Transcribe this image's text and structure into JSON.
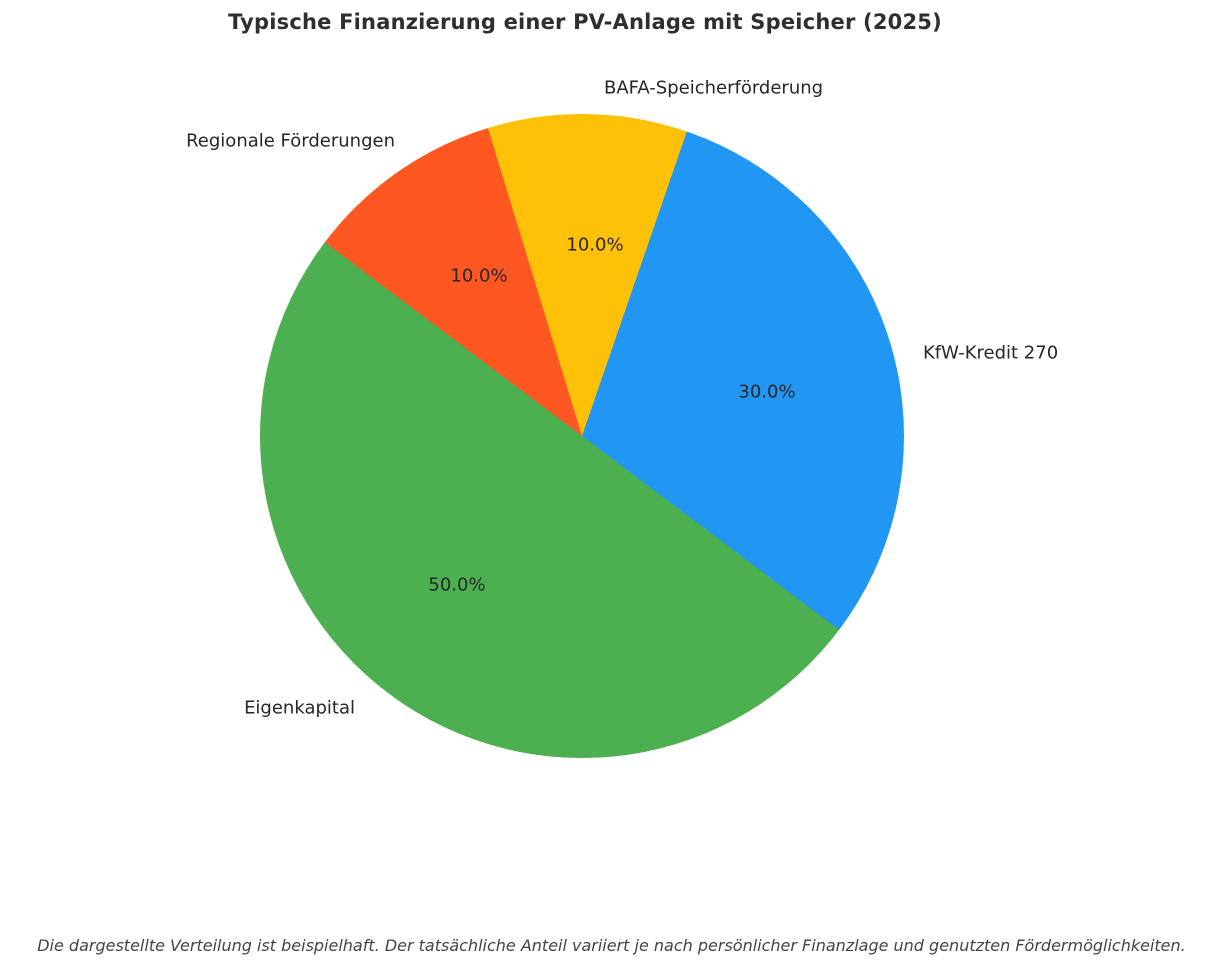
{
  "chart_data": {
    "type": "pie",
    "title": "Typische Finanzierung einer PV-Anlage mit Speicher (2025)",
    "start_angle_deg": -37,
    "direction": "counterclockwise",
    "legend_position": "none",
    "labels_position": "outside",
    "pct_labels_position": "inside",
    "slices": [
      {
        "label": "KfW-Kredit 270",
        "value": 30.0,
        "pct_label": "30.0%",
        "color": "#2196F3"
      },
      {
        "label": "BAFA-Speicherförderung",
        "value": 10.0,
        "pct_label": "10.0%",
        "color": "#FFC107"
      },
      {
        "label": "Regionale Förderungen",
        "value": 10.0,
        "pct_label": "10.0%",
        "color": "#FF5722"
      },
      {
        "label": "Eigenkapital",
        "value": 50.0,
        "pct_label": "50.0%",
        "color": "#4CAF50"
      }
    ],
    "footnote": "Die dargestellte Verteilung ist beispielhaft. Der tatsächliche Anteil variiert je nach persönlicher Finanzlage und genutzten Fördermöglichkeiten."
  }
}
